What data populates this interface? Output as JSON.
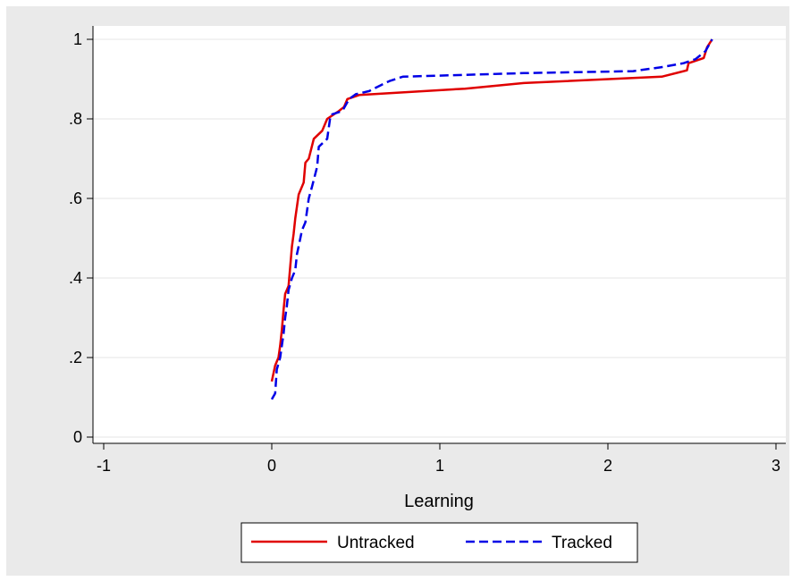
{
  "chart_data": {
    "type": "line",
    "title": "",
    "xlabel": "Learning",
    "ylabel": "",
    "xlim": [
      -1,
      3
    ],
    "ylim": [
      0,
      1
    ],
    "x_ticks": [
      {
        "value": -1,
        "label": "-1"
      },
      {
        "value": 0,
        "label": "0"
      },
      {
        "value": 1,
        "label": "1"
      },
      {
        "value": 2,
        "label": "2"
      },
      {
        "value": 3,
        "label": "3"
      }
    ],
    "y_ticks": [
      {
        "value": 0,
        "label": "0"
      },
      {
        "value": 0.2,
        "label": ".2"
      },
      {
        "value": 0.4,
        "label": ".4"
      },
      {
        "value": 0.6,
        "label": ".6"
      },
      {
        "value": 0.8,
        "label": ".8"
      },
      {
        "value": 1,
        "label": "1"
      }
    ],
    "grid": true,
    "legend_position": "bottom-center",
    "colors": {
      "figure_bg": "#eaeaea",
      "plot_bg": "#ffffff",
      "grid": "#e6e6e6"
    },
    "series": [
      {
        "name": "Untracked",
        "color": "#e00000",
        "dash": "solid",
        "points": [
          [
            0.0,
            0.14
          ],
          [
            0.01,
            0.16
          ],
          [
            0.02,
            0.18
          ],
          [
            0.04,
            0.2
          ],
          [
            0.05,
            0.23
          ],
          [
            0.06,
            0.27
          ],
          [
            0.07,
            0.32
          ],
          [
            0.08,
            0.36
          ],
          [
            0.1,
            0.38
          ],
          [
            0.11,
            0.43
          ],
          [
            0.12,
            0.48
          ],
          [
            0.13,
            0.51
          ],
          [
            0.14,
            0.55
          ],
          [
            0.15,
            0.58
          ],
          [
            0.16,
            0.61
          ],
          [
            0.19,
            0.64
          ],
          [
            0.2,
            0.69
          ],
          [
            0.22,
            0.7
          ],
          [
            0.25,
            0.75
          ],
          [
            0.3,
            0.77
          ],
          [
            0.33,
            0.8
          ],
          [
            0.4,
            0.82
          ],
          [
            0.43,
            0.83
          ],
          [
            0.45,
            0.85
          ],
          [
            0.52,
            0.86
          ],
          [
            1.15,
            0.876
          ],
          [
            1.5,
            0.89
          ],
          [
            2.32,
            0.906
          ],
          [
            2.47,
            0.922
          ],
          [
            2.48,
            0.94
          ],
          [
            2.57,
            0.953
          ],
          [
            2.59,
            0.98
          ],
          [
            2.62,
            1.0
          ]
        ]
      },
      {
        "name": "Tracked",
        "color": "#0000e6",
        "dash": "dashed",
        "points": [
          [
            0.0,
            0.095
          ],
          [
            0.02,
            0.11
          ],
          [
            0.03,
            0.17
          ],
          [
            0.05,
            0.2
          ],
          [
            0.06,
            0.23
          ],
          [
            0.07,
            0.26
          ],
          [
            0.08,
            0.3
          ],
          [
            0.09,
            0.33
          ],
          [
            0.1,
            0.37
          ],
          [
            0.12,
            0.4
          ],
          [
            0.14,
            0.42
          ],
          [
            0.15,
            0.46
          ],
          [
            0.16,
            0.48
          ],
          [
            0.18,
            0.52
          ],
          [
            0.2,
            0.54
          ],
          [
            0.22,
            0.6
          ],
          [
            0.24,
            0.63
          ],
          [
            0.27,
            0.68
          ],
          [
            0.28,
            0.73
          ],
          [
            0.33,
            0.75
          ],
          [
            0.35,
            0.81
          ],
          [
            0.42,
            0.82
          ],
          [
            0.46,
            0.85
          ],
          [
            0.5,
            0.862
          ],
          [
            0.58,
            0.87
          ],
          [
            0.65,
            0.885
          ],
          [
            0.7,
            0.895
          ],
          [
            0.78,
            0.906
          ],
          [
            1.5,
            0.915
          ],
          [
            2.15,
            0.92
          ],
          [
            2.32,
            0.93
          ],
          [
            2.45,
            0.94
          ],
          [
            2.52,
            0.95
          ],
          [
            2.58,
            0.97
          ],
          [
            2.62,
            1.0
          ]
        ]
      }
    ]
  }
}
